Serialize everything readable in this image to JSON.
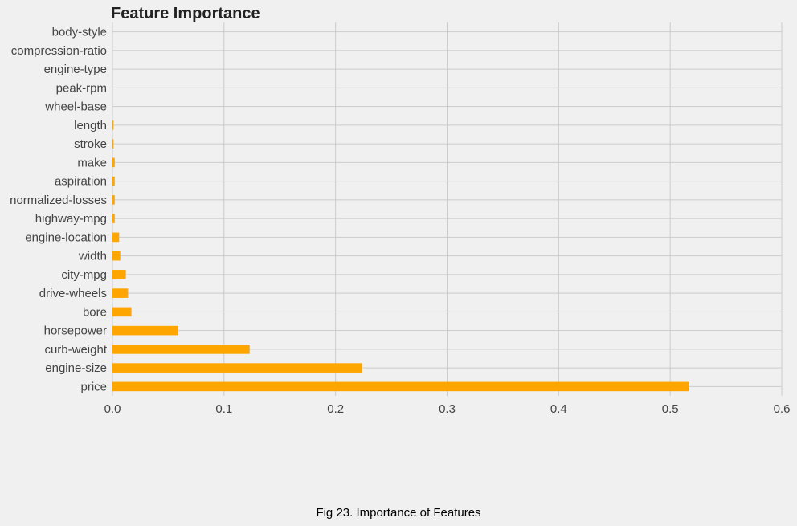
{
  "figure": {
    "caption": "Fig 23. Importance of Features"
  },
  "chart_data": {
    "type": "bar",
    "orientation": "horizontal",
    "title": "Feature Importance",
    "xlabel": "",
    "ylabel": "",
    "xlim": [
      0,
      0.6
    ],
    "x_ticks": [
      0.0,
      0.1,
      0.2,
      0.3,
      0.4,
      0.5,
      0.6
    ],
    "x_tick_labels": [
      "0.0",
      "0.1",
      "0.2",
      "0.3",
      "0.4",
      "0.5",
      "0.6"
    ],
    "grid": true,
    "legend": "none",
    "bar_color": "#ffa500",
    "categories": [
      "price",
      "engine-size",
      "curb-weight",
      "horsepower",
      "bore",
      "drive-wheels",
      "city-mpg",
      "width",
      "engine-location",
      "highway-mpg",
      "normalized-losses",
      "aspiration",
      "make",
      "stroke",
      "length",
      "wheel-base",
      "peak-rpm",
      "engine-type",
      "compression-ratio",
      "body-style"
    ],
    "values": [
      0.517,
      0.224,
      0.123,
      0.059,
      0.017,
      0.014,
      0.012,
      0.007,
      0.006,
      0.002,
      0.002,
      0.002,
      0.002,
      0.001,
      0.001,
      0.0,
      0.0,
      0.0,
      0.0,
      0.0
    ]
  }
}
